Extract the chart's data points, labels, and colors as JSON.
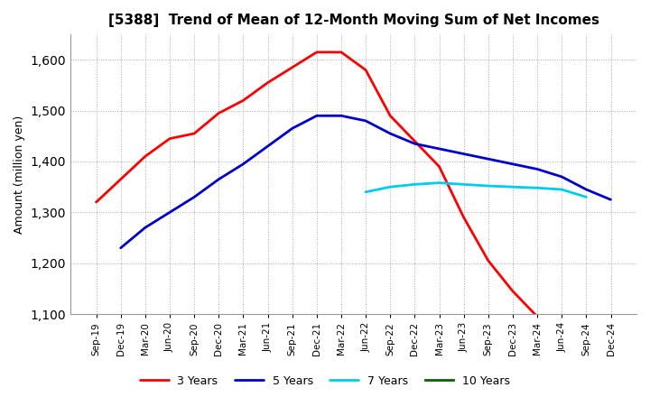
{
  "title": "[5388]  Trend of Mean of 12-Month Moving Sum of Net Incomes",
  "ylabel": "Amount (million yen)",
  "background_color": "#ffffff",
  "plot_bg_color": "#ffffff",
  "grid_color": "#aaaaaa",
  "ylim": [
    1100,
    1650
  ],
  "yticks": [
    1100,
    1200,
    1300,
    1400,
    1500,
    1600
  ],
  "x_labels": [
    "Sep-19",
    "Dec-19",
    "Mar-20",
    "Jun-20",
    "Sep-20",
    "Dec-20",
    "Mar-21",
    "Jun-21",
    "Sep-21",
    "Dec-21",
    "Mar-22",
    "Jun-22",
    "Sep-22",
    "Dec-22",
    "Mar-23",
    "Jun-23",
    "Sep-23",
    "Dec-23",
    "Mar-24",
    "Jun-24",
    "Sep-24",
    "Dec-24"
  ],
  "series": [
    {
      "name": "3 Years",
      "color": "#ff0000",
      "linewidth": 2.0,
      "values": [
        1320,
        1365,
        1410,
        1445,
        1455,
        1495,
        1520,
        1555,
        1585,
        1615,
        1615,
        1580,
        1490,
        1440,
        1390,
        1290,
        1205,
        1145,
        1095,
        null,
        null,
        null
      ]
    },
    {
      "name": "5 Years",
      "color": "#0000cc",
      "linewidth": 2.0,
      "values": [
        null,
        1230,
        1270,
        1300,
        1330,
        1365,
        1395,
        1430,
        1465,
        1490,
        1490,
        1480,
        1455,
        1435,
        1425,
        1415,
        1405,
        1395,
        1385,
        1370,
        1345,
        1325
      ]
    },
    {
      "name": "7 Years",
      "color": "#00ccee",
      "linewidth": 2.0,
      "values": [
        null,
        null,
        null,
        null,
        null,
        null,
        null,
        null,
        null,
        null,
        null,
        1340,
        1350,
        1355,
        1358,
        1355,
        1352,
        1350,
        1348,
        1345,
        1330,
        null
      ]
    },
    {
      "name": "10 Years",
      "color": "#006600",
      "linewidth": 2.0,
      "values": [
        null,
        null,
        null,
        null,
        null,
        null,
        null,
        null,
        null,
        null,
        null,
        null,
        null,
        null,
        null,
        null,
        null,
        null,
        null,
        null,
        null,
        null
      ]
    }
  ]
}
